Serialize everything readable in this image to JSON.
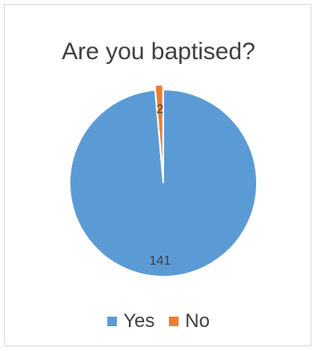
{
  "chart_data": {
    "type": "pie",
    "title": "Are you baptised?",
    "categories": [
      "Yes",
      "No"
    ],
    "values": [
      141,
      2
    ],
    "colors": [
      "#5b9bd5",
      "#ed7d31"
    ],
    "data_labels": [
      "141",
      "2"
    ],
    "legend_position": "bottom",
    "start_angle_deg": 0,
    "exploded_slice": "No"
  }
}
